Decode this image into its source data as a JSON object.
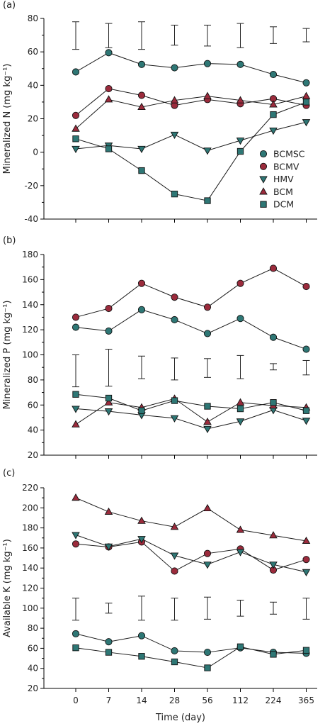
{
  "chart_data": [
    {
      "type": "line",
      "panel_label": "(a)",
      "ylabel": "Mineralized N (mg kg⁻¹)",
      "ylim": [
        -40,
        80
      ],
      "yticks": [
        -40,
        -20,
        0,
        20,
        40,
        60,
        80
      ],
      "categories": [
        "0",
        "7",
        "14",
        "28",
        "56",
        "112",
        "224",
        "365"
      ],
      "series": [
        {
          "name": "BCMSC",
          "marker": "circle",
          "color": "#2e7775",
          "values": [
            48,
            59.5,
            52.5,
            50.5,
            53,
            52.5,
            46.5,
            41.5
          ]
        },
        {
          "name": "BCMV",
          "marker": "circle",
          "color": "#9b2b3c",
          "values": [
            22,
            38,
            34,
            28,
            31.5,
            29,
            32,
            28
          ]
        },
        {
          "name": "HMV",
          "marker": "triangle-down",
          "color": "#2e7775",
          "values": [
            2,
            4,
            2,
            10.5,
            1,
            7,
            13,
            18
          ]
        },
        {
          "name": "BCM",
          "marker": "triangle-up",
          "color": "#9b2b3c",
          "values": [
            14,
            31.5,
            27,
            31,
            33.5,
            31,
            28.5,
            33.5
          ]
        },
        {
          "name": "DCM",
          "marker": "square",
          "color": "#2e7775",
          "values": [
            8,
            2,
            -11,
            -25,
            -29,
            0.5,
            22.5,
            30
          ]
        }
      ],
      "error_bars": [
        [
          61.5,
          78
        ],
        [
          62.5,
          77
        ],
        [
          61.5,
          78
        ],
        [
          64,
          76
        ],
        [
          63.5,
          76
        ],
        [
          62.5,
          77
        ],
        [
          65,
          75
        ],
        [
          66,
          74
        ]
      ],
      "legend": {
        "placement": "right",
        "entries": [
          "BCMSC",
          "BCMV",
          "HMV",
          "BCM",
          "DCM"
        ]
      }
    },
    {
      "type": "line",
      "panel_label": "(b)",
      "ylabel": "Mineralized P (mg kg⁻¹)",
      "ylim": [
        20,
        180
      ],
      "yticks": [
        20,
        40,
        60,
        80,
        100,
        120,
        140,
        160,
        180
      ],
      "categories": [
        "0",
        "7",
        "14",
        "28",
        "56",
        "112",
        "224",
        "365"
      ],
      "series": [
        {
          "name": "BCMSC",
          "marker": "circle",
          "color": "#2e7775",
          "values": [
            122,
            119,
            136,
            128,
            117,
            129,
            114,
            104.5
          ]
        },
        {
          "name": "BCMV",
          "marker": "circle",
          "color": "#9b2b3c",
          "values": [
            130,
            137,
            157,
            146,
            138,
            157,
            169,
            154.5
          ]
        },
        {
          "name": "HMV",
          "marker": "triangle-down",
          "color": "#2e7775",
          "values": [
            57,
            55,
            52,
            49.5,
            41,
            47,
            56,
            47.5
          ]
        },
        {
          "name": "BCM",
          "marker": "triangle-up",
          "color": "#9b2b3c",
          "values": [
            44.5,
            62,
            58,
            65,
            46.5,
            62,
            59.5,
            58
          ]
        },
        {
          "name": "DCM",
          "marker": "square",
          "color": "#2e7775",
          "values": [
            68.5,
            65.5,
            55.5,
            63.5,
            59,
            57,
            62,
            55.5
          ]
        }
      ],
      "error_bars": [
        [
          74.5,
          100
        ],
        [
          75,
          104.5
        ],
        [
          81,
          99
        ],
        [
          80,
          97.5
        ],
        [
          82,
          97
        ],
        [
          81,
          99.5
        ],
        [
          88,
          93
        ],
        [
          84,
          95.5
        ]
      ]
    },
    {
      "type": "line",
      "panel_label": "(c)",
      "ylabel": "Available K (mg kg⁻¹)",
      "xlabel": "Time (day)",
      "ylim": [
        20,
        220
      ],
      "yticks": [
        20,
        40,
        60,
        80,
        100,
        120,
        140,
        160,
        180,
        200,
        220
      ],
      "categories": [
        "0",
        "7",
        "14",
        "28",
        "56",
        "112",
        "224",
        "365"
      ],
      "series": [
        {
          "name": "BCMSC",
          "marker": "circle",
          "color": "#2e7775",
          "values": [
            74.5,
            66.5,
            72.5,
            57.5,
            56,
            60.5,
            56,
            55
          ]
        },
        {
          "name": "BCMV",
          "marker": "circle",
          "color": "#9b2b3c",
          "values": [
            164,
            161,
            166,
            137,
            154.5,
            159,
            138,
            148.5
          ]
        },
        {
          "name": "HMV",
          "marker": "triangle-down",
          "color": "#2e7775",
          "values": [
            173,
            161.5,
            169,
            152.5,
            143.5,
            156,
            143.5,
            136
          ]
        },
        {
          "name": "BCM",
          "marker": "triangle-up",
          "color": "#9b2b3c",
          "values": [
            210,
            196,
            187,
            181,
            199.5,
            178,
            172.5,
            167
          ]
        },
        {
          "name": "DCM",
          "marker": "square",
          "color": "#2e7775",
          "values": [
            60.5,
            56,
            52,
            46.5,
            40.5,
            61.5,
            54,
            58
          ]
        }
      ],
      "error_bars": [
        [
          88,
          110
        ],
        [
          95,
          105
        ],
        [
          88,
          112
        ],
        [
          88,
          110
        ],
        [
          89,
          111
        ],
        [
          92,
          108
        ],
        [
          94,
          106
        ],
        [
          89,
          110
        ]
      ]
    }
  ]
}
